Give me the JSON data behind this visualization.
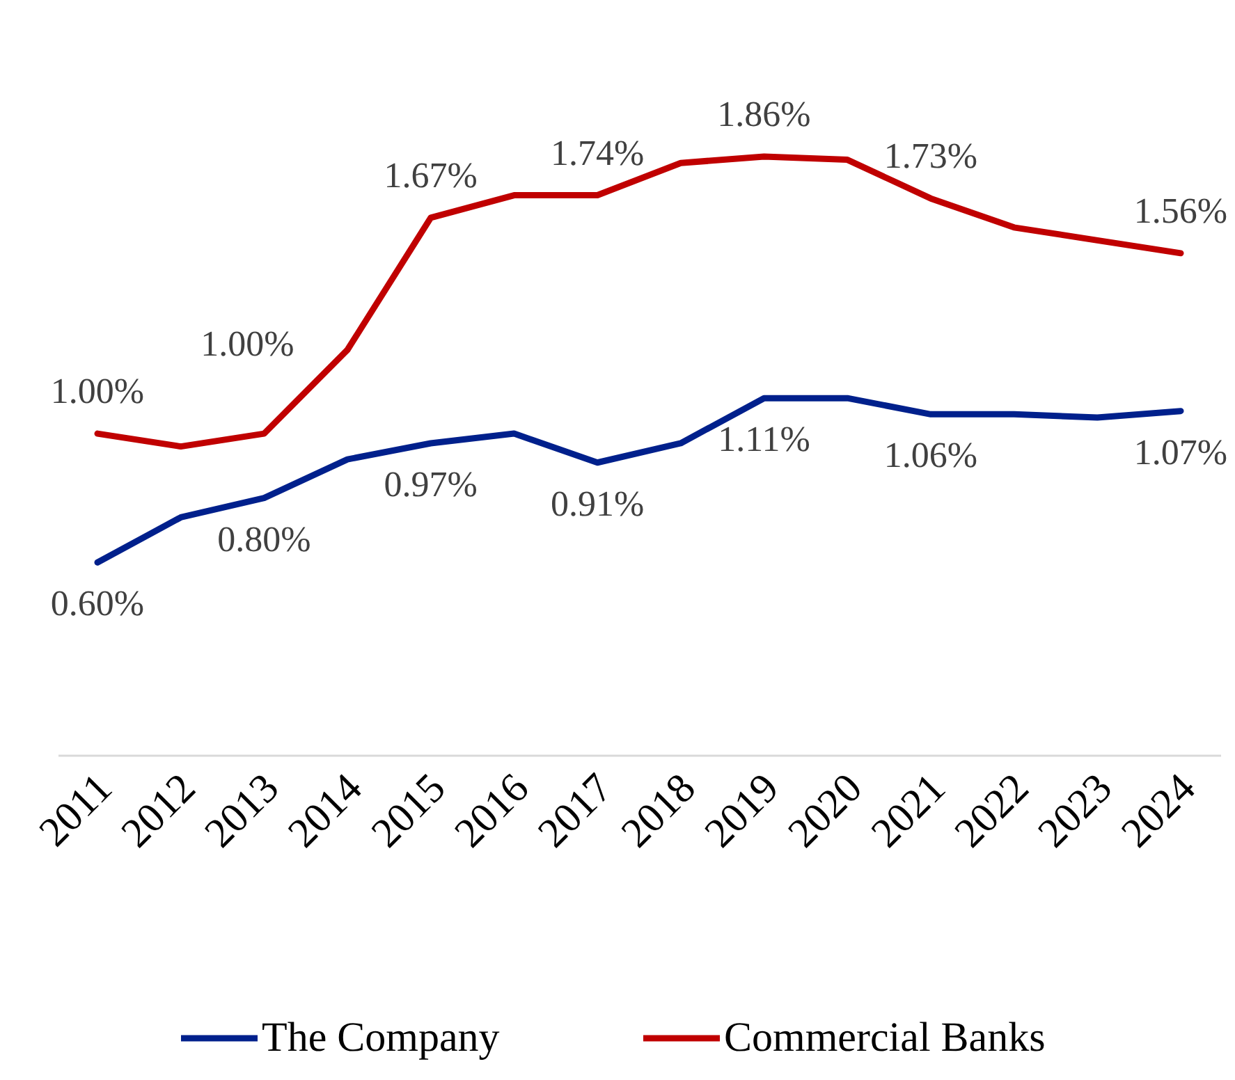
{
  "chart_data": {
    "type": "line",
    "categories": [
      "2011",
      "2012",
      "2013",
      "2014",
      "2015",
      "2016",
      "2017",
      "2018",
      "2019",
      "2020",
      "2021",
      "2022",
      "2023",
      "2024"
    ],
    "tick_labels": "x",
    "legend": "bottom",
    "marker": "none",
    "line_style": "solid",
    "series": [
      {
        "name": "The Company",
        "color": "#00208c",
        "values": [
          0.6,
          0.74,
          0.8,
          0.92,
          0.97,
          1.0,
          0.91,
          0.97,
          1.11,
          1.11,
          1.06,
          1.06,
          1.05,
          1.07
        ],
        "value_labels": [
          "0.60%",
          null,
          "0.80%",
          null,
          "0.97%",
          null,
          "0.91%",
          null,
          "1.11%",
          null,
          "1.06%",
          null,
          null,
          "1.07%"
        ]
      },
      {
        "name": "Commercial Banks",
        "color": "#c00000",
        "values": [
          1.0,
          0.96,
          1.0,
          1.26,
          1.67,
          1.74,
          1.74,
          1.84,
          1.86,
          1.85,
          1.73,
          1.64,
          1.6,
          1.56
        ],
        "value_labels": [
          "1.00%",
          null,
          "1.00%",
          null,
          "1.67%",
          null,
          "1.74%",
          null,
          "1.86%",
          null,
          "1.73%",
          null,
          null,
          "1.56%"
        ]
      }
    ]
  }
}
